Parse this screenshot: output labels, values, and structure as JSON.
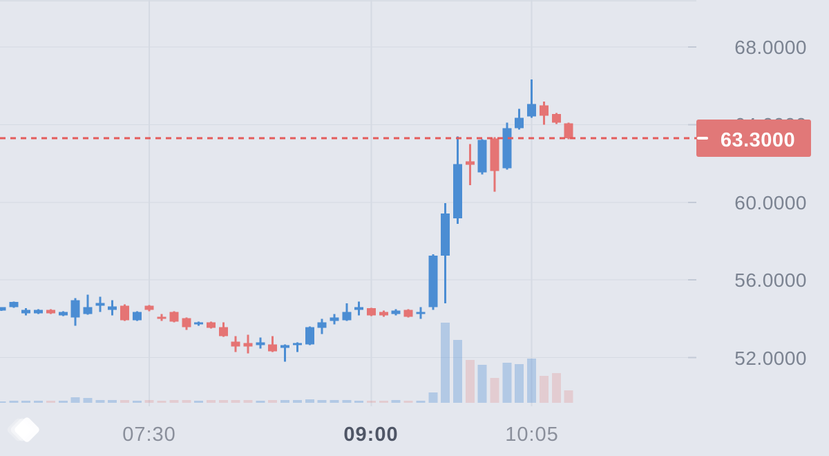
{
  "price_axis": {
    "current_price_label": "63.3000"
  },
  "watermark": {
    "icon": "layered-diamond-logo"
  },
  "colors": {
    "background": "#e4e7ee",
    "grid": "#d5dae3",
    "tick": "#c3cad6",
    "up": "#4b8dd3",
    "down": "#e57474",
    "volume_up": "rgba(75,141,211,0.33)",
    "volume_down": "rgba(224,122,122,0.25)",
    "price_line": "#e45b5b",
    "badge_background": "#e17878",
    "badge_text": "#ffffff",
    "price_axis_text": "#7b8391",
    "time_axis_text": "#8a8f9b",
    "time_axis_text_bold": "#4f5666"
  },
  "chart_data": {
    "type": "candlestick",
    "subtype": "candlestick-with-volume",
    "interval_minutes": 5,
    "grid": true,
    "y_axis": {
      "side": "right",
      "tick_values": [
        68,
        64,
        60,
        56,
        52
      ],
      "tick_labels": [
        "68.0000",
        "64.0000",
        "60.0000",
        "56.0000",
        "52.0000"
      ],
      "visible_range": [
        49.7,
        70.4
      ]
    },
    "x_axis": {
      "labels": [
        {
          "text": "07:30",
          "bold": false,
          "candle_index": 12
        },
        {
          "text": "09:00",
          "bold": true,
          "candle_index": 30
        },
        {
          "text": "10:05",
          "bold": false,
          "candle_index": 43
        }
      ]
    },
    "price_line": {
      "value": 63.3,
      "label": "63.3000",
      "style": "dashed"
    },
    "volume_units": "relative",
    "candles": [
      {
        "t": "06:30",
        "o": 54.43,
        "h": 54.61,
        "l": 54.4,
        "c": 54.61,
        "v": 2
      },
      {
        "t": "06:35",
        "o": 54.61,
        "h": 54.89,
        "l": 54.57,
        "c": 54.86,
        "v": 3
      },
      {
        "t": "06:40",
        "o": 54.29,
        "h": 54.54,
        "l": 54.18,
        "c": 54.46,
        "v": 3
      },
      {
        "t": "06:45",
        "o": 54.29,
        "h": 54.5,
        "l": 54.25,
        "c": 54.46,
        "v": 3
      },
      {
        "t": "06:50",
        "o": 54.46,
        "h": 54.5,
        "l": 54.25,
        "c": 54.29,
        "v": 3
      },
      {
        "t": "06:55",
        "o": 54.18,
        "h": 54.39,
        "l": 54.14,
        "c": 54.36,
        "v": 3
      },
      {
        "t": "07:00",
        "o": 54.07,
        "h": 55.07,
        "l": 53.64,
        "c": 54.96,
        "v": 8
      },
      {
        "t": "07:05",
        "o": 54.25,
        "h": 55.25,
        "l": 54.21,
        "c": 54.61,
        "v": 7
      },
      {
        "t": "07:10",
        "o": 54.68,
        "h": 55.14,
        "l": 54.36,
        "c": 54.82,
        "v": 4
      },
      {
        "t": "07:15",
        "o": 54.46,
        "h": 54.96,
        "l": 54.18,
        "c": 54.64,
        "v": 4
      },
      {
        "t": "07:20",
        "o": 54.68,
        "h": 54.75,
        "l": 53.89,
        "c": 53.93,
        "v": 4
      },
      {
        "t": "07:25",
        "o": 53.93,
        "h": 54.39,
        "l": 53.89,
        "c": 54.36,
        "v": 3
      },
      {
        "t": "07:30",
        "o": 54.68,
        "h": 54.71,
        "l": 54.39,
        "c": 54.46,
        "v": 4
      },
      {
        "t": "07:35",
        "o": 54.11,
        "h": 54.25,
        "l": 53.89,
        "c": 54.0,
        "v": 3
      },
      {
        "t": "07:40",
        "o": 54.36,
        "h": 54.39,
        "l": 53.82,
        "c": 53.86,
        "v": 4
      },
      {
        "t": "07:45",
        "o": 54.04,
        "h": 54.07,
        "l": 53.43,
        "c": 53.57,
        "v": 4
      },
      {
        "t": "07:50",
        "o": 53.71,
        "h": 53.86,
        "l": 53.64,
        "c": 53.82,
        "v": 3
      },
      {
        "t": "07:55",
        "o": 53.82,
        "h": 53.86,
        "l": 53.5,
        "c": 53.54,
        "v": 4
      },
      {
        "t": "08:00",
        "o": 53.57,
        "h": 53.82,
        "l": 53.07,
        "c": 53.11,
        "v": 4
      },
      {
        "t": "08:05",
        "o": 52.82,
        "h": 53.11,
        "l": 52.29,
        "c": 52.57,
        "v": 4
      },
      {
        "t": "08:10",
        "o": 52.75,
        "h": 53.18,
        "l": 52.21,
        "c": 52.57,
        "v": 4
      },
      {
        "t": "08:15",
        "o": 52.64,
        "h": 53.04,
        "l": 52.46,
        "c": 52.79,
        "v": 3
      },
      {
        "t": "08:20",
        "o": 52.68,
        "h": 53.11,
        "l": 52.29,
        "c": 52.32,
        "v": 4
      },
      {
        "t": "08:25",
        "o": 52.5,
        "h": 52.68,
        "l": 51.79,
        "c": 52.64,
        "v": 4
      },
      {
        "t": "08:30",
        "o": 52.64,
        "h": 52.79,
        "l": 52.29,
        "c": 52.75,
        "v": 4
      },
      {
        "t": "08:35",
        "o": 52.68,
        "h": 53.61,
        "l": 52.64,
        "c": 53.57,
        "v": 5
      },
      {
        "t": "08:40",
        "o": 53.54,
        "h": 54.0,
        "l": 53.21,
        "c": 53.82,
        "v": 4
      },
      {
        "t": "08:45",
        "o": 53.89,
        "h": 54.25,
        "l": 53.71,
        "c": 54.07,
        "v": 4
      },
      {
        "t": "08:50",
        "o": 53.93,
        "h": 54.79,
        "l": 53.89,
        "c": 54.36,
        "v": 4
      },
      {
        "t": "08:55",
        "o": 54.46,
        "h": 54.89,
        "l": 54.18,
        "c": 54.61,
        "v": 3
      },
      {
        "t": "09:00",
        "o": 54.54,
        "h": 54.57,
        "l": 54.14,
        "c": 54.18,
        "v": 3
      },
      {
        "t": "09:05",
        "o": 54.36,
        "h": 54.43,
        "l": 54.11,
        "c": 54.18,
        "v": 3
      },
      {
        "t": "09:10",
        "o": 54.25,
        "h": 54.5,
        "l": 54.18,
        "c": 54.43,
        "v": 4
      },
      {
        "t": "09:15",
        "o": 54.46,
        "h": 54.5,
        "l": 54.07,
        "c": 54.11,
        "v": 3
      },
      {
        "t": "09:20",
        "o": 54.25,
        "h": 54.61,
        "l": 54.0,
        "c": 54.36,
        "v": 3
      },
      {
        "t": "09:25",
        "o": 54.61,
        "h": 57.32,
        "l": 54.46,
        "c": 57.25,
        "v": 15
      },
      {
        "t": "09:30",
        "o": 57.25,
        "h": 59.96,
        "l": 54.79,
        "c": 59.43,
        "v": 116
      },
      {
        "t": "09:35",
        "o": 59.18,
        "h": 63.39,
        "l": 58.89,
        "c": 61.96,
        "v": 91
      },
      {
        "t": "09:40",
        "o": 62.11,
        "h": 63.0,
        "l": 60.89,
        "c": 61.93,
        "v": 62
      },
      {
        "t": "09:45",
        "o": 61.54,
        "h": 63.25,
        "l": 61.43,
        "c": 63.21,
        "v": 55
      },
      {
        "t": "09:50",
        "o": 63.29,
        "h": 63.36,
        "l": 60.54,
        "c": 61.61,
        "v": 36
      },
      {
        "t": "09:55",
        "o": 61.75,
        "h": 64.11,
        "l": 61.68,
        "c": 63.82,
        "v": 58
      },
      {
        "t": "10:00",
        "o": 63.82,
        "h": 64.82,
        "l": 63.75,
        "c": 64.36,
        "v": 56
      },
      {
        "t": "10:05",
        "o": 64.43,
        "h": 66.32,
        "l": 64.36,
        "c": 65.07,
        "v": 64
      },
      {
        "t": "10:10",
        "o": 65.0,
        "h": 65.18,
        "l": 64.0,
        "c": 64.46,
        "v": 39
      },
      {
        "t": "10:15",
        "o": 64.54,
        "h": 64.61,
        "l": 64.04,
        "c": 64.11,
        "v": 43
      },
      {
        "t": "10:20",
        "o": 64.07,
        "h": 64.11,
        "l": 63.25,
        "c": 63.3,
        "v": 18
      }
    ]
  }
}
